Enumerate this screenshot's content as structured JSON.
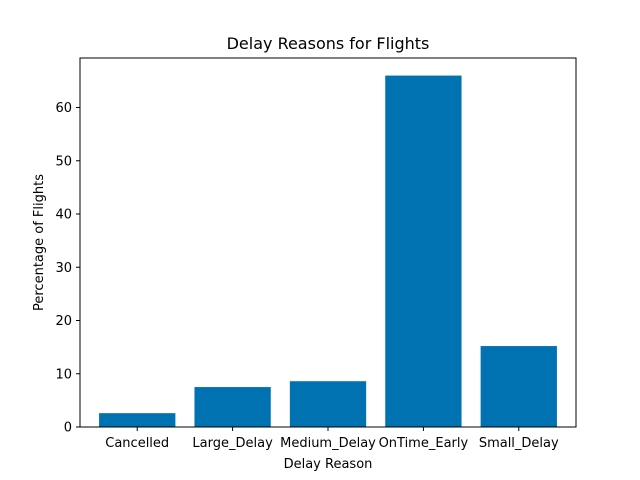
{
  "chart_data": {
    "type": "bar",
    "title": "Delay Reasons for Flights",
    "xlabel": "Delay Reason",
    "ylabel": "Percentage of Flights",
    "categories": [
      "Cancelled",
      "Large_Delay",
      "Medium_Delay",
      "OnTime_Early",
      "Small_Delay"
    ],
    "values": [
      2.6,
      7.5,
      8.6,
      66.0,
      15.2
    ],
    "ylim": [
      0,
      69.3
    ],
    "yticks": [
      0,
      10,
      20,
      30,
      40,
      50,
      60
    ],
    "bar_color": "#0072b2",
    "grid": false,
    "legend": "none"
  }
}
